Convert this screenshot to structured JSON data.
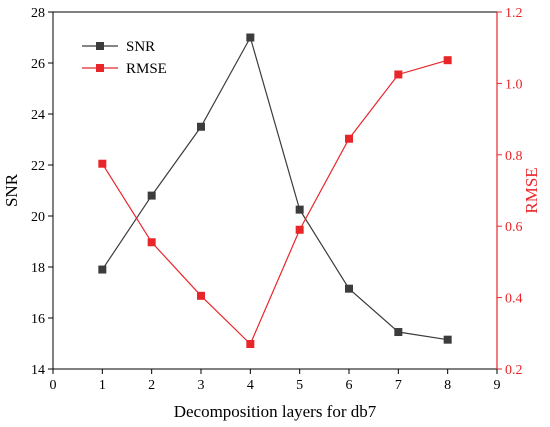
{
  "chart_data": {
    "type": "line",
    "xlabel": "Decomposition layers for db7",
    "x_ticks": [
      0,
      1,
      2,
      3,
      4,
      5,
      6,
      7,
      8,
      9
    ],
    "xlim": [
      0,
      9
    ],
    "y_left": {
      "label": "SNR",
      "ticks": [
        14,
        16,
        18,
        20,
        22,
        24,
        26,
        28
      ],
      "lim": [
        14,
        28
      ],
      "color": "#000000"
    },
    "y_right": {
      "label": "RMSE",
      "ticks": [
        "0.2",
        "0.4",
        "0.6",
        "0.8",
        "1.0",
        "1.2"
      ],
      "lim": [
        0.2,
        1.2
      ],
      "color": "#e8262a"
    },
    "x": [
      1,
      2,
      3,
      4,
      5,
      6,
      7,
      8
    ],
    "series": [
      {
        "name": "SNR",
        "axis": "left",
        "color": "#3c3c3c",
        "marker": "square",
        "values": [
          17.9,
          20.8,
          23.5,
          27.0,
          20.25,
          17.15,
          15.45,
          15.15
        ]
      },
      {
        "name": "RMSE",
        "axis": "right",
        "color": "#e8262a",
        "marker": "square",
        "values": [
          0.775,
          0.555,
          0.405,
          0.27,
          0.59,
          0.845,
          1.025,
          1.065
        ]
      }
    ],
    "legend_position": "top-left",
    "grid": false
  }
}
